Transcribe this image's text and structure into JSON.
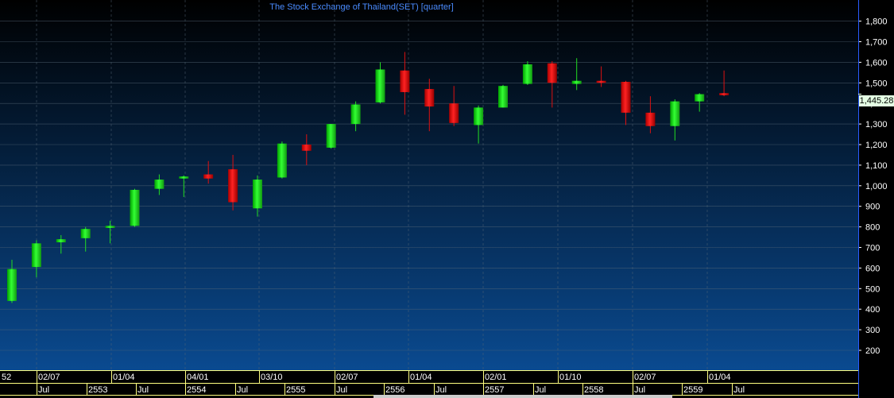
{
  "chart_data": {
    "type": "candlestick",
    "title": "The Stock Exchange of Thailand(SET) [quarter]",
    "xlabel": "",
    "ylabel": "",
    "ylim": [
      120,
      1880
    ],
    "y_ticks": [
      200,
      300,
      400,
      500,
      600,
      700,
      800,
      900,
      1000,
      1100,
      1200,
      1300,
      1400,
      1500,
      1600,
      1700,
      1800
    ],
    "y_tick_labels": [
      "200",
      "300",
      "400",
      "500",
      "600",
      "700",
      "800",
      "900",
      "1,000",
      "1,100",
      "1,200",
      "1,300",
      "1,400",
      "1,500",
      "1,600",
      "1,700",
      "1,800"
    ],
    "last_price_label": "1,445.28",
    "last_price": 1445.28,
    "grid": true,
    "colors": {
      "up": "#22dd22",
      "down": "#dd1111",
      "axis": "#ffff80",
      "grid": "#556677",
      "title": "#4a8cff",
      "bg_top": "#000000",
      "bg_bottom": "#0a4a90"
    },
    "candles": [
      {
        "open": 440,
        "high": 640,
        "low": 430,
        "close": 595
      },
      {
        "open": 605,
        "high": 735,
        "low": 555,
        "close": 720
      },
      {
        "open": 725,
        "high": 760,
        "low": 670,
        "close": 740
      },
      {
        "open": 745,
        "high": 800,
        "low": 680,
        "close": 790
      },
      {
        "open": 795,
        "high": 830,
        "low": 720,
        "close": 805
      },
      {
        "open": 805,
        "high": 985,
        "low": 800,
        "close": 980
      },
      {
        "open": 985,
        "high": 1055,
        "low": 955,
        "close": 1030
      },
      {
        "open": 1035,
        "high": 1050,
        "low": 945,
        "close": 1045
      },
      {
        "open": 1055,
        "high": 1120,
        "low": 1010,
        "close": 1035
      },
      {
        "open": 1080,
        "high": 1150,
        "low": 880,
        "close": 920
      },
      {
        "open": 890,
        "high": 1050,
        "low": 850,
        "close": 1030
      },
      {
        "open": 1040,
        "high": 1215,
        "low": 1035,
        "close": 1205
      },
      {
        "open": 1200,
        "high": 1250,
        "low": 1100,
        "close": 1170
      },
      {
        "open": 1185,
        "high": 1300,
        "low": 1180,
        "close": 1300
      },
      {
        "open": 1300,
        "high": 1410,
        "low": 1265,
        "close": 1395
      },
      {
        "open": 1405,
        "high": 1600,
        "low": 1400,
        "close": 1565
      },
      {
        "open": 1560,
        "high": 1650,
        "low": 1345,
        "close": 1455
      },
      {
        "open": 1470,
        "high": 1520,
        "low": 1265,
        "close": 1385
      },
      {
        "open": 1400,
        "high": 1485,
        "low": 1290,
        "close": 1305
      },
      {
        "open": 1295,
        "high": 1390,
        "low": 1205,
        "close": 1380
      },
      {
        "open": 1380,
        "high": 1490,
        "low": 1380,
        "close": 1485
      },
      {
        "open": 1495,
        "high": 1605,
        "low": 1490,
        "close": 1590
      },
      {
        "open": 1595,
        "high": 1605,
        "low": 1380,
        "close": 1500
      },
      {
        "open": 1495,
        "high": 1620,
        "low": 1465,
        "close": 1510
      },
      {
        "open": 1510,
        "high": 1580,
        "low": 1480,
        "close": 1500
      },
      {
        "open": 1505,
        "high": 1510,
        "low": 1295,
        "close": 1355
      },
      {
        "open": 1355,
        "high": 1435,
        "low": 1255,
        "close": 1290
      },
      {
        "open": 1290,
        "high": 1420,
        "low": 1220,
        "close": 1410
      },
      {
        "open": 1410,
        "high": 1450,
        "low": 1360,
        "close": 1445
      },
      {
        "open": 1450,
        "high": 1560,
        "low": 1435,
        "close": 1440
      }
    ],
    "x_axis_upper": [
      "52",
      "02/07",
      "01/04",
      "04/01",
      "03/10",
      "02/07",
      "01/04",
      "02/01",
      "01/10",
      "02/07",
      "01/04"
    ],
    "x_axis_lower": [
      "Jul",
      "2553",
      "Jul",
      "2554",
      "Jul",
      "2555",
      "Jul",
      "2556",
      "Jul",
      "2557",
      "Jul",
      "2558",
      "Jul",
      "2559",
      "Jul"
    ]
  }
}
